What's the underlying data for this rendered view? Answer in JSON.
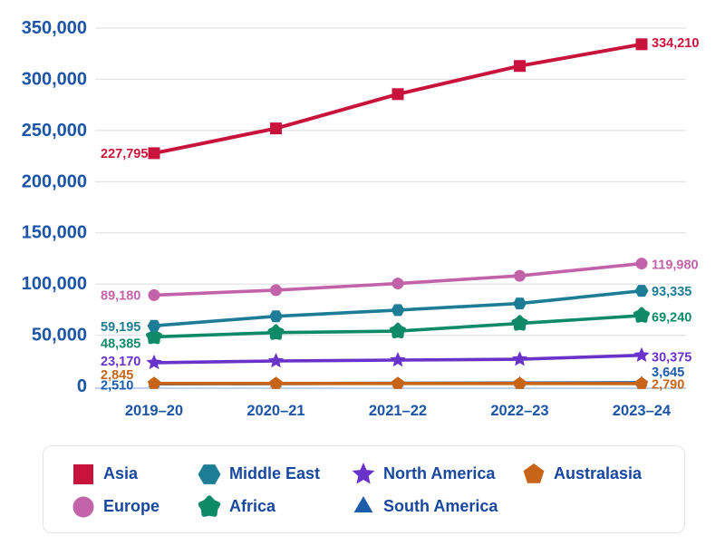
{
  "chart_data": {
    "type": "line",
    "title": "",
    "xlabel": "",
    "ylabel": "",
    "ylim": [
      0,
      350000
    ],
    "grid": true,
    "legend_position": "bottom",
    "axis_text_color": "#1D55A6",
    "legend_text_color": "#17479E",
    "gridline_color": "#E4E4E6",
    "zero_line_color": "#C3D2EB",
    "x_categories": [
      "2019–20",
      "2020–21",
      "2021–22",
      "2022–23",
      "2023–24"
    ],
    "y_ticks": [
      {
        "value": 350000,
        "label": "350,000"
      },
      {
        "value": 300000,
        "label": "300,000"
      },
      {
        "value": 250000,
        "label": "250,000"
      },
      {
        "value": 200000,
        "label": "200,000"
      },
      {
        "value": 150000,
        "label": "150,000"
      },
      {
        "value": 100000,
        "label": "100,000"
      },
      {
        "value": 50000,
        "label": "50,000"
      },
      {
        "value": 0,
        "label": "0"
      }
    ],
    "series": [
      {
        "name": "Asia",
        "color": "#C8143C",
        "marker": "square",
        "values": [
          227795,
          252000,
          285500,
          313000,
          334210
        ],
        "point_labels": {
          "first": "227,795",
          "last": "334,210"
        }
      },
      {
        "name": "Middle East",
        "color": "#1E7D96",
        "marker": "hexagon",
        "values": [
          59195,
          68500,
          74500,
          81000,
          93335
        ],
        "point_labels": {
          "first": "59,195",
          "last": "93,335"
        }
      },
      {
        "name": "North America",
        "color": "#6933C9",
        "marker": "star",
        "values": [
          23170,
          24800,
          25700,
          26500,
          30375
        ],
        "point_labels": {
          "first": "23,170",
          "last": "30,375"
        }
      },
      {
        "name": "Australasia",
        "color": "#C76418",
        "marker": "pentagon",
        "values": [
          2845,
          2830,
          2815,
          2800,
          2790
        ],
        "point_labels": {
          "first": "2,845",
          "last": "2,790"
        }
      },
      {
        "name": "Europe",
        "color": "#C263A9",
        "marker": "circle",
        "values": [
          89180,
          94000,
          100500,
          108000,
          119980
        ],
        "point_labels": {
          "first": "89,180",
          "last": "119,980"
        }
      },
      {
        "name": "Africa",
        "color": "#0F8A68",
        "marker": "star-rounded",
        "values": [
          48385,
          52500,
          54000,
          61500,
          69240
        ],
        "point_labels": {
          "first": "48,385",
          "last": "69,240"
        }
      },
      {
        "name": "South America",
        "color": "#1C5CA8",
        "marker": "triangle",
        "values": [
          2510,
          2750,
          3000,
          3300,
          3645
        ],
        "point_labels": {
          "first": "2,510",
          "last": "3,645"
        }
      }
    ],
    "legend_order": [
      "Asia",
      "Middle East",
      "North America",
      "Australasia",
      "Europe",
      "Africa",
      "South America"
    ]
  }
}
